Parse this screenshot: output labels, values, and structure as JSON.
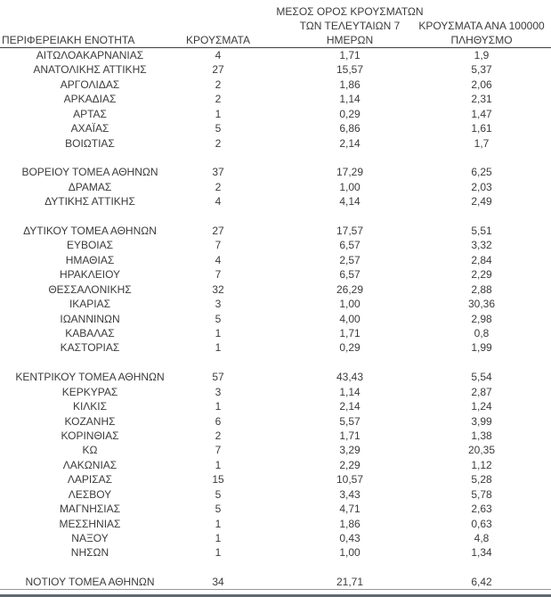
{
  "colors": {
    "background": "#ffffff",
    "text": "#3b3b3b",
    "header_rule": "#404040",
    "thin_rule": "#999999",
    "bottom_bar": "#5d6a74"
  },
  "header": {
    "col1": "ΠΕΡΙΦΕΡΕΙΑΚΗ ΕΝΟΤΗΤΑ",
    "col2": "ΚΡΟΥΣΜΑΤΑ",
    "col3_line1": "ΜΕΣΟΣ ΟΡΟΣ ΚΡΟΥΣΜΑΤΩΝ",
    "col3_line2": "ΤΩΝ ΤΕΛΕΥΤΑΙΩΝ 7",
    "col3_line3": "ΗΜΕΡΩΝ",
    "col4_line1": "ΚΡΟΥΣΜΑΤΑ ΑΝΑ 100000",
    "col4_line2": "ΠΛΗΘΥΣΜΟ"
  },
  "chart_data": {
    "type": "table",
    "columns": [
      "ΠΕΡΙΦΕΡΕΙΑΚΗ ΕΝΟΤΗΤΑ",
      "ΚΡΟΥΣΜΑΤΑ",
      "ΜΕΣΟΣ ΟΡΟΣ ΚΡΟΥΣΜΑΤΩΝ ΤΩΝ ΤΕΛΕΥΤΑΙΩΝ 7 ΗΜΕΡΩΝ",
      "ΚΡΟΥΣΜΑΤΑ ΑΝΑ 100000 ΠΛΗΘΥΣΜΟ"
    ],
    "rows": [
      [
        "ΑΙΤΩΛΟΑΚΑΡΝΑΝΙΑΣ",
        "4",
        "1,71",
        "1,9"
      ],
      [
        "ΑΝΑΤΟΛΙΚΗΣ ΑΤΤΙΚΗΣ",
        "27",
        "15,57",
        "5,37"
      ],
      [
        "ΑΡΓΟΛΙΔΑΣ",
        "2",
        "1,86",
        "2,06"
      ],
      [
        "ΑΡΚΑΔΙΑΣ",
        "2",
        "1,14",
        "2,31"
      ],
      [
        "ΑΡΤΑΣ",
        "1",
        "0,29",
        "1,47"
      ],
      [
        "ΑΧΑΪΑΣ",
        "5",
        "6,86",
        "1,61"
      ],
      [
        "ΒΟΙΩΤΙΑΣ",
        "2",
        "2,14",
        "1,7"
      ],
      [
        "ΒΟΡΕΙΟΥ ΤΟΜΕΑ ΑΘΗΝΩΝ",
        "37",
        "17,29",
        "6,25"
      ],
      [
        "ΔΡΑΜΑΣ",
        "2",
        "1,00",
        "2,03"
      ],
      [
        "ΔΥΤΙΚΗΣ ΑΤΤΙΚΗΣ",
        "4",
        "4,14",
        "2,49"
      ],
      [
        "ΔΥΤΙΚΟΥ ΤΟΜΕΑ ΑΘΗΝΩΝ",
        "27",
        "17,57",
        "5,51"
      ],
      [
        "ΕΥΒΟΙΑΣ",
        "7",
        "6,57",
        "3,32"
      ],
      [
        "ΗΜΑΘΙΑΣ",
        "4",
        "2,57",
        "2,84"
      ],
      [
        "ΗΡΑΚΛΕΙΟΥ",
        "7",
        "6,57",
        "2,29"
      ],
      [
        "ΘΕΣΣΑΛΟΝΙΚΗΣ",
        "32",
        "26,29",
        "2,88"
      ],
      [
        "ΙΚΑΡΙΑΣ",
        "3",
        "1,00",
        "30,36"
      ],
      [
        "ΙΩΑΝΝΙΝΩΝ",
        "5",
        "4,00",
        "2,98"
      ],
      [
        "ΚΑΒΑΛΑΣ",
        "1",
        "1,71",
        "0,8"
      ],
      [
        "ΚΑΣΤΟΡΙΑΣ",
        "1",
        "0,29",
        "1,99"
      ],
      [
        "ΚΕΝΤΡΙΚΟΥ ΤΟΜΕΑ ΑΘΗΝΩΝ",
        "57",
        "43,43",
        "5,54"
      ],
      [
        "ΚΕΡΚΥΡΑΣ",
        "3",
        "1,14",
        "2,87"
      ],
      [
        "ΚΙΛΚΙΣ",
        "1",
        "2,14",
        "1,24"
      ],
      [
        "ΚΟΖΑΝΗΣ",
        "6",
        "5,57",
        "3,99"
      ],
      [
        "ΚΟΡΙΝΘΙΑΣ",
        "2",
        "1,71",
        "1,38"
      ],
      [
        "ΚΩ",
        "7",
        "3,29",
        "20,35"
      ],
      [
        "ΛΑΚΩΝΙΑΣ",
        "1",
        "2,29",
        "1,12"
      ],
      [
        "ΛΑΡΙΣΑΣ",
        "15",
        "10,57",
        "5,28"
      ],
      [
        "ΛΕΣΒΟΥ",
        "5",
        "3,43",
        "5,78"
      ],
      [
        "ΜΑΓΝΗΣΙΑΣ",
        "5",
        "4,71",
        "2,63"
      ],
      [
        "ΜΕΣΣΗΝΙΑΣ",
        "1",
        "1,86",
        "0,63"
      ],
      [
        "ΝΑΞΟΥ",
        "1",
        "0,43",
        "4,8"
      ],
      [
        "ΝΗΣΩΝ",
        "1",
        "1,00",
        "1,34"
      ],
      [
        "ΝΟΤΙΟΥ ΤΟΜΕΑ ΑΘΗΝΩΝ",
        "34",
        "21,71",
        "6,42"
      ]
    ],
    "blank_row_before": [
      "ΒΟΡΕΙΟΥ ΤΟΜΕΑ ΑΘΗΝΩΝ",
      "ΔΥΤΙΚΟΥ ΤΟΜΕΑ ΑΘΗΝΩΝ",
      "ΚΕΝΤΡΙΚΟΥ ΤΟΜΕΑ ΑΘΗΝΩΝ",
      "ΝΟΤΙΟΥ ΤΟΜΕΑ ΑΘΗΝΩΝ"
    ],
    "layout_hints": {
      "grid": false,
      "header_underline": true,
      "bottom_double_rule": true
    }
  }
}
